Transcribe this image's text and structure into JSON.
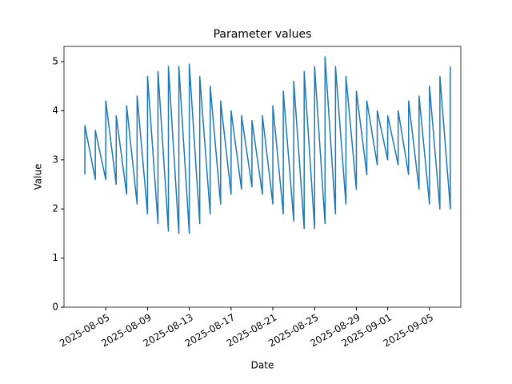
{
  "chart_data": {
    "type": "line",
    "title": "Parameter values",
    "x_label": "Date",
    "y_label": "Value",
    "x": [
      "2025-08-03",
      "2025-08-03",
      "2025-08-04",
      "2025-08-04",
      "2025-08-05",
      "2025-08-05",
      "2025-08-06",
      "2025-08-06",
      "2025-08-07",
      "2025-08-07",
      "2025-08-08",
      "2025-08-08",
      "2025-08-09",
      "2025-08-09",
      "2025-08-10",
      "2025-08-10",
      "2025-08-11",
      "2025-08-11",
      "2025-08-12",
      "2025-08-12",
      "2025-08-13",
      "2025-08-13",
      "2025-08-14",
      "2025-08-14",
      "2025-08-15",
      "2025-08-15",
      "2025-08-16",
      "2025-08-16",
      "2025-08-17",
      "2025-08-17",
      "2025-08-18",
      "2025-08-18",
      "2025-08-19",
      "2025-08-19",
      "2025-08-20",
      "2025-08-20",
      "2025-08-21",
      "2025-08-21",
      "2025-08-22",
      "2025-08-22",
      "2025-08-23",
      "2025-08-23",
      "2025-08-24",
      "2025-08-24",
      "2025-08-25",
      "2025-08-25",
      "2025-08-26",
      "2025-08-26",
      "2025-08-27",
      "2025-08-27",
      "2025-08-28",
      "2025-08-28",
      "2025-08-29",
      "2025-08-29",
      "2025-08-30",
      "2025-08-30",
      "2025-08-31",
      "2025-08-31",
      "2025-09-01",
      "2025-09-01",
      "2025-09-02",
      "2025-09-02",
      "2025-09-03",
      "2025-09-03",
      "2025-09-04",
      "2025-09-04",
      "2025-09-05",
      "2025-09-05",
      "2025-09-06",
      "2025-09-06",
      "2025-09-07",
      "2025-09-07"
    ],
    "series": [
      {
        "color": "#1f77b4",
        "values": [
          2.7,
          3.7,
          2.6,
          3.6,
          2.6,
          4.2,
          2.5,
          3.9,
          2.3,
          4.1,
          2.1,
          4.3,
          1.9,
          4.7,
          1.7,
          4.8,
          1.55,
          4.9,
          1.5,
          4.9,
          1.5,
          4.95,
          1.7,
          4.7,
          1.9,
          4.5,
          2.1,
          4.2,
          2.3,
          4.0,
          2.4,
          3.9,
          2.45,
          3.8,
          2.3,
          3.9,
          2.1,
          4.1,
          1.9,
          4.4,
          1.75,
          4.6,
          1.6,
          4.8,
          1.6,
          4.9,
          1.7,
          5.1,
          1.9,
          4.9,
          2.1,
          4.7,
          2.4,
          4.4,
          2.7,
          4.2,
          2.9,
          4.0,
          3.0,
          3.9,
          2.9,
          4.0,
          2.7,
          4.2,
          2.4,
          4.3,
          2.1,
          4.5,
          2.0,
          4.7,
          2.0,
          4.9
        ]
      }
    ],
    "xlim": [
      "2025-08-01",
      "2025-09-08"
    ],
    "xticks": [
      "2025-08-05",
      "2025-08-09",
      "2025-08-13",
      "2025-08-17",
      "2025-08-21",
      "2025-08-25",
      "2025-08-29",
      "2025-09-01",
      "2025-09-05"
    ],
    "ylim": [
      0,
      5.31
    ],
    "yticks": [
      0,
      1,
      2,
      3,
      4,
      5
    ]
  }
}
